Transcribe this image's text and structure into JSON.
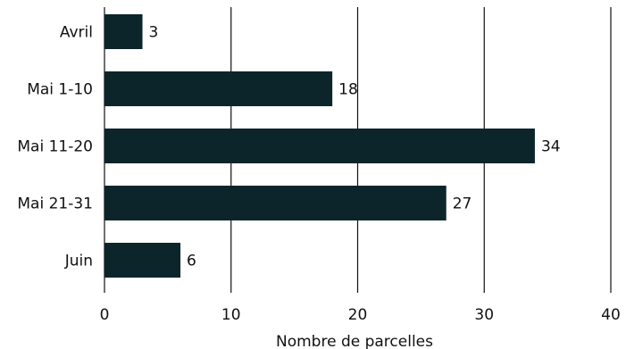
{
  "chart_data": {
    "type": "bar",
    "orientation": "horizontal",
    "categories": [
      "Avril",
      "Mai 1-10",
      "Mai 11-20",
      "Mai 21-31",
      "Juin"
    ],
    "values": [
      3,
      18,
      34,
      27,
      6
    ],
    "data_labels": [
      "3",
      "18",
      "34",
      "27",
      "6"
    ],
    "xlabel": "Nombre de parcelles",
    "xlim": [
      0,
      40
    ],
    "xticks": [
      0,
      10,
      20,
      30,
      40
    ],
    "xtick_labels": [
      "0",
      "10",
      "20",
      "30",
      "40"
    ],
    "grid": "vertical",
    "legend": "none"
  },
  "colors": {
    "bar": "#0b252b",
    "grid": "#111111",
    "text": "#111111"
  }
}
